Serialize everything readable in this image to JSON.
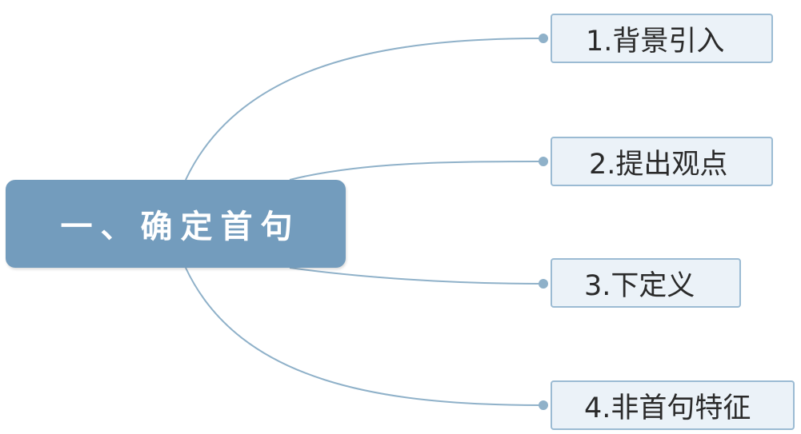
{
  "diagram": {
    "type": "mind-map",
    "root": {
      "label": "一、确定首句"
    },
    "branches": [
      {
        "label": "1.背景引入"
      },
      {
        "label": "2.提出观点"
      },
      {
        "label": "3.下定义"
      },
      {
        "label": "4.非首句特征"
      }
    ]
  },
  "colors": {
    "root_fill": "#739cbd",
    "branch_fill": "#ebf2f8",
    "branch_border": "#9bbbd3",
    "connector": "#8fb1c9",
    "connector_dot": "#8fb1c9"
  }
}
